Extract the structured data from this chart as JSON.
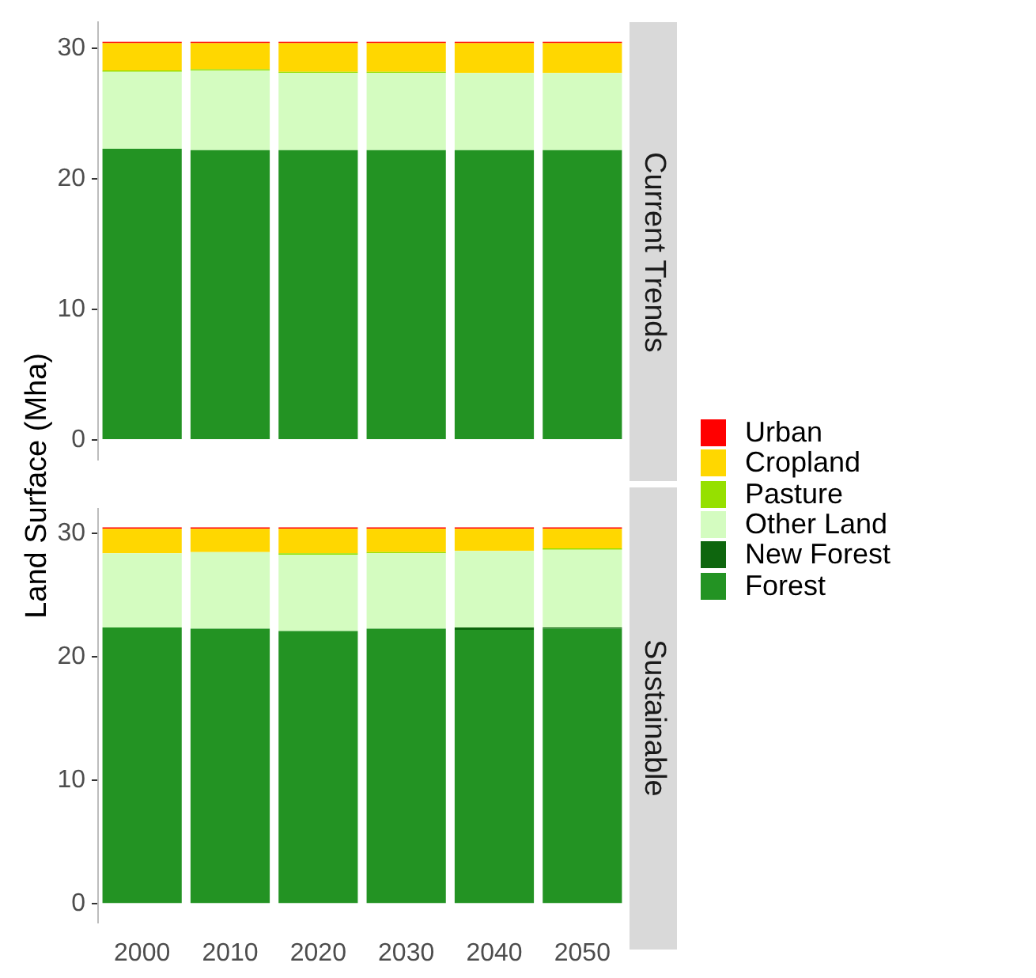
{
  "chart_data": [
    {
      "type": "bar",
      "title": "Current Trends",
      "ylabel": "Land Surface (Mha)",
      "stacked": true,
      "legend": "right",
      "tick_labels": "y",
      "categories": [
        "2000",
        "2010",
        "2020",
        "2030",
        "2040",
        "2050"
      ],
      "ylim": [
        -1.5,
        32
      ],
      "yticks": [
        0,
        10,
        20,
        30
      ],
      "series": [
        {
          "name": "Forest",
          "color": "#239323",
          "values": [
            22.3,
            22.2,
            22.2,
            22.2,
            22.2,
            22.2
          ]
        },
        {
          "name": "New Forest",
          "color": "#0e660e",
          "values": [
            0,
            0,
            0,
            0,
            0,
            0
          ]
        },
        {
          "name": "Other Land",
          "color": "#d4fcc0",
          "values": [
            5.9,
            6.1,
            5.9,
            5.9,
            5.9,
            5.9
          ]
        },
        {
          "name": "Pasture",
          "color": "#96e000",
          "values": [
            0.1,
            0.1,
            0.1,
            0.1,
            0,
            0
          ]
        },
        {
          "name": "Cropland",
          "color": "#ffd700",
          "values": [
            2.1,
            2.0,
            2.2,
            2.2,
            2.3,
            2.3
          ]
        },
        {
          "name": "Urban",
          "color": "#ff0000",
          "values": [
            0.1,
            0.1,
            0.1,
            0.1,
            0.1,
            0.1
          ]
        }
      ]
    },
    {
      "type": "bar",
      "title": "Sustainable",
      "stacked": true,
      "categories": [
        "2000",
        "2010",
        "2020",
        "2030",
        "2040",
        "2050"
      ],
      "ylim": [
        -1.5,
        32
      ],
      "yticks": [
        0,
        10,
        20,
        30
      ],
      "series": [
        {
          "color": "#239323",
          "values": [
            22.4,
            22.3,
            22.1,
            22.3,
            22.2,
            22.3
          ]
        },
        {
          "color": "#0e660e",
          "values": [
            0,
            0,
            0,
            0,
            0.2,
            0.1
          ]
        },
        {
          "color": "#d4fcc0",
          "values": [
            6.0,
            6.2,
            6.2,
            6.1,
            6.2,
            6.3
          ]
        },
        {
          "color": "#96e000",
          "values": [
            0,
            0,
            0.1,
            0.1,
            0,
            0.1
          ]
        },
        {
          "color": "#ffd700",
          "values": [
            2.0,
            1.9,
            2.0,
            1.9,
            1.8,
            1.6
          ]
        },
        {
          "color": "#ff0000",
          "values": [
            0.1,
            0.1,
            0.1,
            0.1,
            0.1,
            0.1
          ]
        }
      ]
    }
  ]
}
